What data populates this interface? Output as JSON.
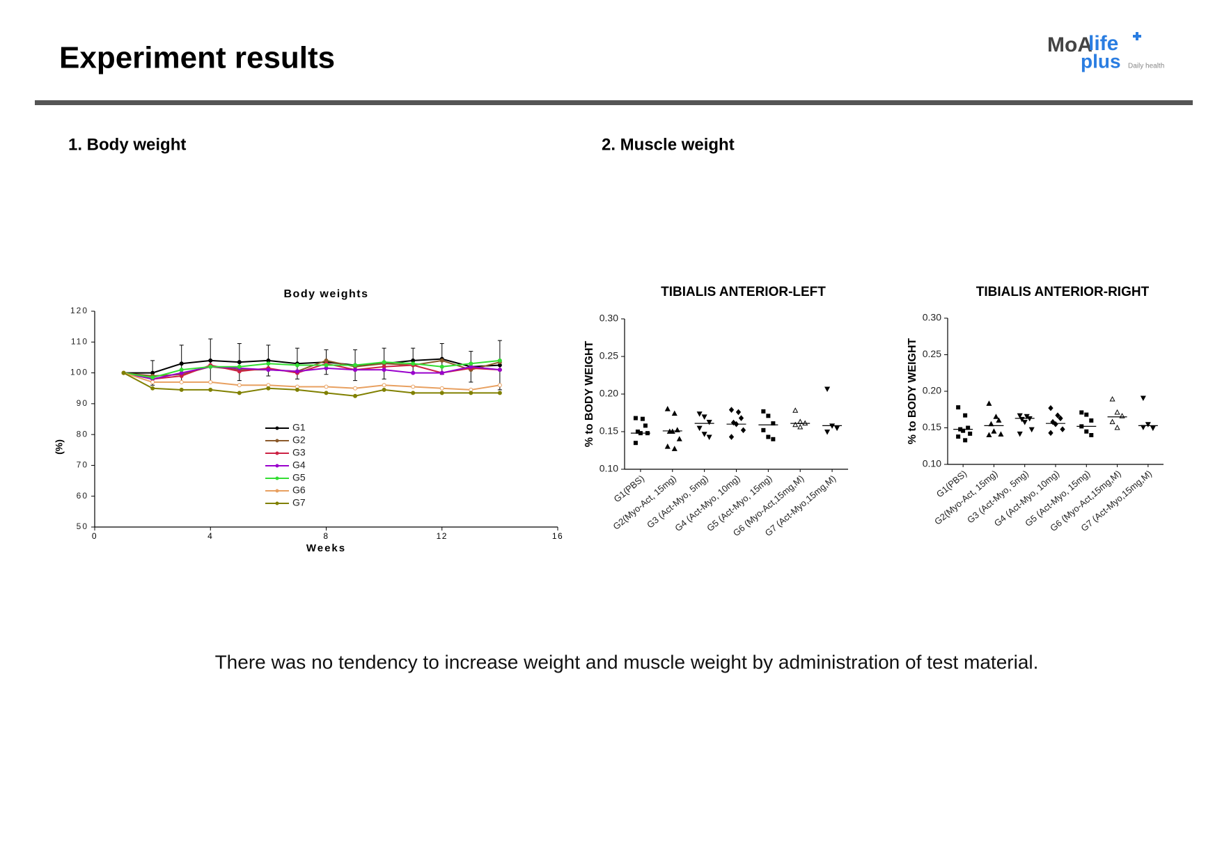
{
  "header": {
    "title": "Experiment results",
    "logo": [
      "MoA",
      "life",
      "plus",
      "Daily health"
    ]
  },
  "sections": [
    "1. Body weight",
    "2. Muscle weight"
  ],
  "chart_data": [
    {
      "type": "line",
      "title": "Body weights",
      "xlabel": "Weeks",
      "ylabel": "(%)",
      "x": [
        1,
        2,
        3,
        4,
        5,
        6,
        7,
        8,
        9,
        10,
        11,
        12,
        13,
        14
      ],
      "xlim": [
        0,
        16
      ],
      "xticks": [
        0,
        4,
        8,
        12,
        16
      ],
      "ylim": [
        50,
        120
      ],
      "yticks": [
        50,
        60,
        70,
        80,
        90,
        100,
        110,
        120
      ],
      "legend": "lower-left",
      "series": [
        {
          "name": "G1",
          "color": "#000000",
          "values": [
            100,
            100,
            103,
            104,
            103.5,
            104,
            103,
            103.5,
            102.5,
            103,
            104,
            104.5,
            102,
            102.5
          ],
          "errors": [
            0,
            4,
            6,
            7,
            6,
            5,
            5,
            4,
            5,
            5,
            4,
            5,
            5,
            8
          ]
        },
        {
          "name": "G2",
          "color": "#8b5a2b",
          "values": [
            100,
            99,
            99.5,
            102,
            101,
            101,
            100.5,
            104,
            102,
            103,
            102.5,
            104,
            101,
            103.5
          ]
        },
        {
          "name": "G3",
          "color": "#cc2244",
          "values": [
            100,
            98,
            99,
            102.5,
            100.5,
            101.5,
            100,
            103,
            101,
            102,
            102.5,
            100,
            101.5,
            101
          ]
        },
        {
          "name": "G4",
          "color": "#9900cc",
          "values": [
            100,
            98,
            100,
            102,
            101.5,
            101,
            100.5,
            101.5,
            101,
            101,
            100,
            100,
            102,
            101
          ]
        },
        {
          "name": "G5",
          "color": "#33dd33",
          "values": [
            100,
            98.5,
            101,
            102,
            102,
            103,
            102.5,
            102.5,
            102.5,
            103.5,
            103,
            102,
            103,
            104
          ]
        },
        {
          "name": "G6",
          "color": "#e8a060",
          "values": [
            100,
            97,
            97,
            97,
            96,
            96,
            95.5,
            95.5,
            95,
            96,
            95.5,
            95,
            94.5,
            96
          ]
        },
        {
          "name": "G7",
          "color": "#808000",
          "values": [
            100,
            95,
            94.5,
            94.5,
            93.5,
            95,
            94.5,
            93.5,
            92.5,
            94.5,
            93.5,
            93.5,
            93.5,
            93.5
          ]
        }
      ]
    },
    {
      "type": "strip",
      "title": "TIBIALIS ANTERIOR-LEFT",
      "ylabel": "% to BODY WEIGHT",
      "categories": [
        "G1(PBS)",
        "G2(Myo-Act, 15mg)",
        "G3 (Act-Myo, 5mg)",
        "G4 (Act-Myo, 10mg)",
        "G5 (Act-Myo, 15mg)",
        "G6 (Myo-Act,15mg,M)",
        "G7 (Act-Myo,15mg,M)"
      ],
      "ylim": [
        0.1,
        0.3
      ],
      "yticks": [
        {
          "value": 0.1,
          "label": "0.10"
        },
        {
          "value": 0.15,
          "label": "0.15"
        },
        {
          "value": 0.2,
          "label": "0.20"
        },
        {
          "value": 0.25,
          "label": "0.25"
        },
        {
          "value": 0.3,
          "label": "0.30"
        }
      ],
      "color": "#000000",
      "values": [
        [
          0.168,
          0.167,
          0.158,
          0.15,
          0.148,
          0.148,
          0.135
        ],
        [
          0.18,
          0.174,
          0.152,
          0.15,
          0.15,
          0.14,
          0.13,
          0.127
        ],
        [
          0.174,
          0.17,
          0.163,
          0.155,
          0.147,
          0.143
        ],
        [
          0.179,
          0.176,
          0.168,
          0.162,
          0.16,
          0.152,
          0.143
        ],
        [
          0.177,
          0.171,
          0.161,
          0.152,
          0.143,
          0.14
        ],
        [
          0.178,
          0.163,
          0.161,
          0.159,
          0.156
        ],
        [
          0.207,
          0.158,
          0.155,
          0.15
        ]
      ],
      "medians": [
        0.148,
        0.151,
        0.161,
        0.16,
        0.159,
        0.161,
        0.158
      ]
    },
    {
      "type": "strip",
      "title": "TIBIALIS ANTERIOR-RIGHT",
      "ylabel": "% to BODY WEIGHT",
      "categories": [
        "G1(PBS)",
        "G2(Myo-Act, 15mg)",
        "G3 (Act-Myo, 5mg)",
        "G4 (Act-Myo, 10mg)",
        "G5 (Act-Myo, 15mg)",
        "G6 (Myo-Act,15mg,M)",
        "G7 (Act-Myo,15mg,M)"
      ],
      "ylim": [
        0.1,
        0.3
      ],
      "yticks": [
        {
          "value": 0.1,
          "label": "0.10"
        },
        {
          "value": 0.15,
          "label": "0.15"
        },
        {
          "value": 0.2,
          "label": "0.20"
        },
        {
          "value": 0.25,
          "label": "0.25"
        },
        {
          "value": 0.3,
          "label": "0.30"
        }
      ],
      "color": "#000000",
      "values": [
        [
          0.178,
          0.167,
          0.15,
          0.148,
          0.146,
          0.142,
          0.138,
          0.133
        ],
        [
          0.183,
          0.165,
          0.16,
          0.155,
          0.145,
          0.141,
          0.14
        ],
        [
          0.167,
          0.166,
          0.163,
          0.162,
          0.158,
          0.148,
          0.142
        ],
        [
          0.177,
          0.167,
          0.163,
          0.158,
          0.155,
          0.148,
          0.143
        ],
        [
          0.171,
          0.168,
          0.16,
          0.152,
          0.145,
          0.14
        ],
        [
          0.189,
          0.171,
          0.166,
          0.158,
          0.15
        ],
        [
          0.191,
          0.155,
          0.15,
          0.151
        ]
      ],
      "medians": [
        0.148,
        0.153,
        0.163,
        0.156,
        0.152,
        0.165,
        0.153
      ]
    }
  ],
  "conclusion": "There was no tendency to increase weight and muscle weight by administration of test material."
}
